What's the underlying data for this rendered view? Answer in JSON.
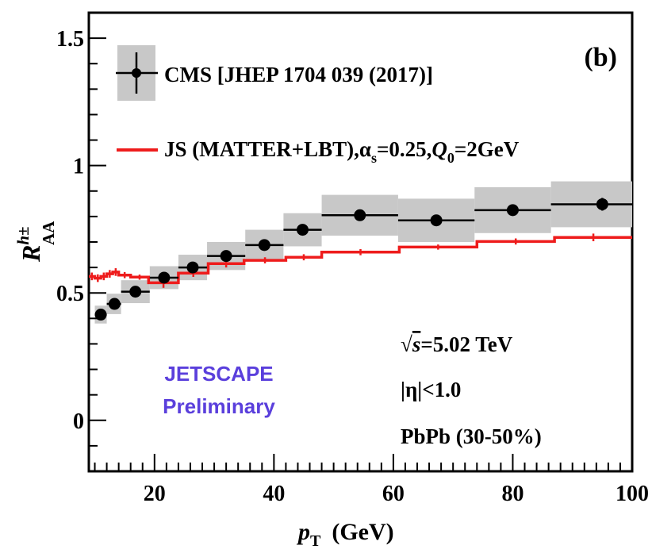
{
  "chart_data": {
    "type": "scatter",
    "panel_label": "(b)",
    "xlabel": {
      "main": "p",
      "sub": "T",
      "unit": "(GeV)"
    },
    "ylabel": {
      "main": "R",
      "sup": "h±",
      "sub": "AA"
    },
    "xlim": [
      9,
      100
    ],
    "ylim": [
      -0.2,
      1.6
    ],
    "x_ticks": [
      20,
      40,
      60,
      80,
      100
    ],
    "x_tick_labels": [
      "20",
      "40",
      "60",
      "80",
      "100"
    ],
    "y_ticks": [
      0,
      0.5,
      1,
      1.5
    ],
    "y_tick_labels": [
      "0",
      "0.5",
      "1",
      "1.5"
    ],
    "series": [
      {
        "name": "CMS [JHEP 1704 039 (2017)]",
        "kind": "points",
        "color": "#000000",
        "sys_color": "#c8c8c8",
        "points": [
          {
            "x": 11.0,
            "xlo": 10.0,
            "xhi": 12.0,
            "y": 0.415,
            "sys": 0.035,
            "stat": 0.01
          },
          {
            "x": 13.3,
            "xlo": 12.0,
            "xhi": 14.4,
            "y": 0.457,
            "sys": 0.04,
            "stat": 0.01
          },
          {
            "x": 16.8,
            "xlo": 14.4,
            "xhi": 19.2,
            "y": 0.505,
            "sys": 0.045,
            "stat": 0.01
          },
          {
            "x": 21.6,
            "xlo": 19.2,
            "xhi": 24.0,
            "y": 0.56,
            "sys": 0.045,
            "stat": 0.01
          },
          {
            "x": 26.4,
            "xlo": 24.0,
            "xhi": 28.8,
            "y": 0.6,
            "sys": 0.05,
            "stat": 0.01
          },
          {
            "x": 32.0,
            "xlo": 28.8,
            "xhi": 35.2,
            "y": 0.645,
            "sys": 0.055,
            "stat": 0.01
          },
          {
            "x": 38.4,
            "xlo": 35.2,
            "xhi": 41.6,
            "y": 0.688,
            "sys": 0.06,
            "stat": 0.012
          },
          {
            "x": 44.8,
            "xlo": 41.6,
            "xhi": 48.0,
            "y": 0.748,
            "sys": 0.065,
            "stat": 0.015
          },
          {
            "x": 54.4,
            "xlo": 48.0,
            "xhi": 60.8,
            "y": 0.805,
            "sys": 0.08,
            "stat": 0.015
          },
          {
            "x": 67.2,
            "xlo": 60.8,
            "xhi": 73.6,
            "y": 0.785,
            "sys": 0.085,
            "stat": 0.018
          },
          {
            "x": 80.0,
            "xlo": 73.6,
            "xhi": 86.4,
            "y": 0.825,
            "sys": 0.09,
            "stat": 0.02
          },
          {
            "x": 95.0,
            "xlo": 86.4,
            "xhi": 103.6,
            "y": 0.848,
            "sys": 0.09,
            "stat": 0.025
          }
        ]
      },
      {
        "name": "JS (MATTER+LBT),α_s=0.25,Q_0=2GeV",
        "kind": "step",
        "color": "#ee1c1c",
        "bins": [
          {
            "xlo": 9.0,
            "xhi": 10.0,
            "y": 0.565,
            "err": 0.015
          },
          {
            "xlo": 10.0,
            "xhi": 11.0,
            "y": 0.558,
            "err": 0.015
          },
          {
            "xlo": 11.0,
            "xhi": 12.0,
            "y": 0.565,
            "err": 0.015
          },
          {
            "xlo": 12.0,
            "xhi": 13.0,
            "y": 0.575,
            "err": 0.015
          },
          {
            "xlo": 13.0,
            "xhi": 14.0,
            "y": 0.582,
            "err": 0.015
          },
          {
            "xlo": 14.0,
            "xhi": 16.0,
            "y": 0.57,
            "err": 0.012
          },
          {
            "xlo": 16.0,
            "xhi": 19.0,
            "y": 0.562,
            "err": 0.01
          },
          {
            "xlo": 19.0,
            "xhi": 24.0,
            "y": 0.54,
            "err": 0.02
          },
          {
            "xlo": 24.0,
            "xhi": 29.0,
            "y": 0.578,
            "err": 0.015
          },
          {
            "xlo": 29.0,
            "xhi": 35.0,
            "y": 0.615,
            "err": 0.015
          },
          {
            "xlo": 35.0,
            "xhi": 42.0,
            "y": 0.628,
            "err": 0.012
          },
          {
            "xlo": 42.0,
            "xhi": 48.0,
            "y": 0.64,
            "err": 0.012
          },
          {
            "xlo": 48.0,
            "xhi": 61.0,
            "y": 0.66,
            "err": 0.012
          },
          {
            "xlo": 61.0,
            "xhi": 74.0,
            "y": 0.68,
            "err": 0.01
          },
          {
            "xlo": 74.0,
            "xhi": 87.0,
            "y": 0.702,
            "err": 0.012
          },
          {
            "xlo": 87.0,
            "xhi": 100.0,
            "y": 0.718,
            "err": 0.015
          }
        ]
      }
    ],
    "legend": {
      "position": "top-left",
      "cms_label": "CMS [JHEP 1704 039 (2017)]",
      "js_prefix": "JS (MATTER+LBT),",
      "js_alpha": "α",
      "js_alpha_sub": "s",
      "js_alpha_val": "=0.25,",
      "js_q": "Q",
      "js_q_sub": "0",
      "js_q_val": "=2GeV"
    },
    "annotations": {
      "energy_sqrt": "√",
      "energy_s": "s",
      "energy_val": "=5.02 TeV",
      "eta": "|η|<1.0",
      "system": "PbPb (30-50%)",
      "watermark_line1": "JETSCAPE",
      "watermark_line2": "Preliminary",
      "watermark_color": "#5a3fdc"
    }
  }
}
